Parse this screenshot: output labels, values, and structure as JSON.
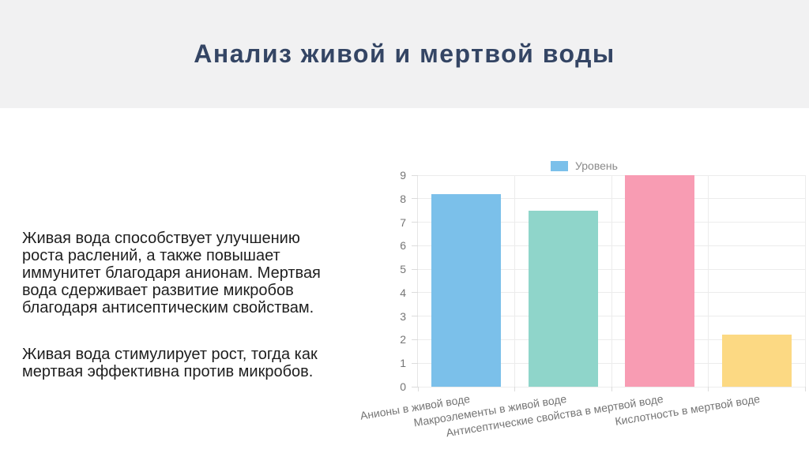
{
  "slide": {
    "title": "Анализ живой и мертвой воды",
    "paragraphs": [
      "Живая вода способствует улучшению\nроста раслений, а также повышает\nиммунитет благодаря анионам. Мертвая\nвода сдерживает развитие микробов\nблагодаря антисептическим свойствам.",
      "Живая вода стимулирует рост, тогда как\nмертвая эффективна против микробов."
    ]
  },
  "chart_data": {
    "type": "bar",
    "title": "",
    "categories": [
      "Анионы в живой воде",
      "Макроэлементы в живой воде",
      "Антисептические свойства в мертвой воде",
      "Кислотность в мертвой воде"
    ],
    "series": [
      {
        "name": "Уровень",
        "values": [
          8.2,
          7.5,
          9,
          2.2
        ]
      }
    ],
    "bar_colors": [
      "#7bc0ea",
      "#8fd5ca",
      "#f89cb3",
      "#fcd983"
    ],
    "legend_swatch_color": "#7bc0ea",
    "ylim": [
      0,
      9
    ],
    "ytick_step": 1,
    "grid": true,
    "legend_position": "top",
    "xlabel": "",
    "ylabel": ""
  },
  "colors": {
    "header_bg": "#f1f1f2",
    "title_text": "#344564",
    "body_text": "#1e1e1e",
    "axis_text": "#757575",
    "legend_text": "#8a8a8a",
    "gridline": "#ececec"
  }
}
